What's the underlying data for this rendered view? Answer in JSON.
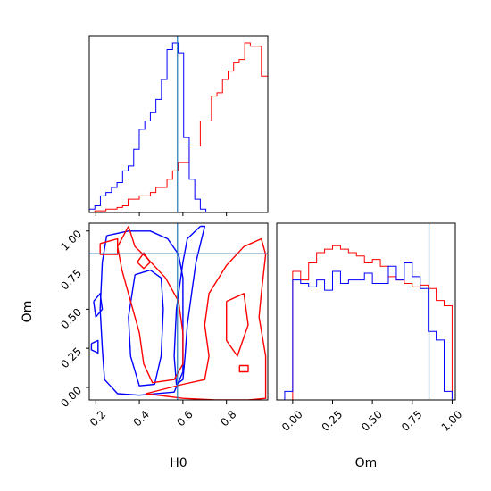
{
  "chart_data": {
    "type": "corner",
    "parameters": [
      "H0",
      "Om"
    ],
    "colors": {
      "series_a": "#ff0000",
      "series_b": "#0000ff",
      "truth": "#1f77b4"
    },
    "truth": {
      "H0": 0.575,
      "Om": 0.855
    },
    "panels": [
      {
        "id": "hist-H0",
        "type": "histogram",
        "xlim": [
          0.17,
          0.99
        ],
        "xticks": [
          0.2,
          0.4,
          0.6,
          0.8
        ],
        "bin_edges": [
          0.17,
          0.1955,
          0.221,
          0.2465,
          0.272,
          0.2975,
          0.323,
          0.3485,
          0.374,
          0.3995,
          0.425,
          0.4505,
          0.476,
          0.5015,
          0.527,
          0.5525,
          0.578,
          0.6035,
          0.629,
          0.6545,
          0.68,
          0.7055,
          0.731,
          0.7565,
          0.782,
          0.8075,
          0.833,
          0.8585,
          0.884,
          0.9095,
          0.935,
          0.9605,
          0.99
        ],
        "series": [
          {
            "color": "#ff0000",
            "counts": [
              0,
              1,
              1,
              2,
              2,
              3,
              4,
              8,
              8,
              10,
              10,
              12,
              15,
              15,
              20,
              25,
              30,
              30,
              40,
              40,
              55,
              55,
              70,
              72,
              80,
              85,
              90,
              92,
              102,
              100,
              100,
              82
            ]
          },
          {
            "color": "#0000ff",
            "counts": [
              2,
              4,
              10,
              12,
              15,
              18,
              25,
              28,
              38,
              50,
              55,
              60,
              68,
              80,
              98,
              102,
              96,
              45,
              20,
              8,
              2,
              0,
              0,
              0,
              0,
              0,
              0,
              0,
              0,
              0,
              0,
              0
            ]
          }
        ]
      },
      {
        "id": "contour-H0-Om",
        "type": "contour",
        "xlabel": "H0",
        "ylabel": "Om",
        "xlim": [
          0.17,
          0.99
        ],
        "ylim": [
          -0.08,
          1.05
        ],
        "xticks": [
          0.2,
          0.4,
          0.6,
          0.8
        ],
        "yticks": [
          0.0,
          0.25,
          0.5,
          0.75,
          1.0
        ],
        "xtick_labels": [
          "0.2",
          "0.4",
          "0.6",
          "0.8"
        ],
        "ytick_labels": [
          "0.00",
          "0.25",
          "0.50",
          "0.75",
          "1.00"
        ],
        "contours": [
          {
            "color": "#0000ff",
            "points": [
              [
                0.25,
                0.97
              ],
              [
                0.35,
                1.0
              ],
              [
                0.45,
                1.0
              ],
              [
                0.53,
                0.95
              ],
              [
                0.58,
                0.85
              ],
              [
                0.6,
                0.7
              ],
              [
                0.6,
                0.5
              ],
              [
                0.6,
                0.3
              ],
              [
                0.6,
                0.1
              ],
              [
                0.56,
                -0.03
              ],
              [
                0.4,
                -0.05
              ],
              [
                0.3,
                -0.04
              ],
              [
                0.24,
                0.05
              ],
              [
                0.23,
                0.25
              ],
              [
                0.22,
                0.5
              ],
              [
                0.23,
                0.8
              ],
              [
                0.25,
                0.97
              ]
            ]
          },
          {
            "color": "#0000ff",
            "points": [
              [
                0.38,
                0.72
              ],
              [
                0.45,
                0.75
              ],
              [
                0.5,
                0.7
              ],
              [
                0.51,
                0.5
              ],
              [
                0.5,
                0.2
              ],
              [
                0.47,
                0.02
              ],
              [
                0.4,
                0.01
              ],
              [
                0.36,
                0.2
              ],
              [
                0.35,
                0.45
              ],
              [
                0.38,
                0.72
              ]
            ]
          },
          {
            "color": "#0000ff",
            "points": [
              [
                0.68,
                1.03
              ],
              [
                0.7,
                1.03
              ],
              [
                0.66,
                0.8
              ],
              [
                0.64,
                0.6
              ],
              [
                0.62,
                0.4
              ],
              [
                0.61,
                0.2
              ],
              [
                0.6,
                0.05
              ],
              [
                0.57,
                0.02
              ],
              [
                0.56,
                0.2
              ],
              [
                0.57,
                0.5
              ],
              [
                0.6,
                0.8
              ],
              [
                0.62,
                0.95
              ],
              [
                0.68,
                1.03
              ]
            ]
          },
          {
            "color": "#ff0000",
            "points": [
              [
                0.35,
                1.03
              ],
              [
                0.38,
                0.9
              ],
              [
                0.44,
                0.82
              ],
              [
                0.52,
                0.7
              ],
              [
                0.58,
                0.55
              ],
              [
                0.6,
                0.35
              ],
              [
                0.6,
                0.15
              ],
              [
                0.56,
                0.05
              ],
              [
                0.46,
                0.03
              ],
              [
                0.42,
                0.15
              ],
              [
                0.4,
                0.35
              ],
              [
                0.36,
                0.55
              ],
              [
                0.32,
                0.75
              ],
              [
                0.3,
                0.9
              ],
              [
                0.35,
                1.03
              ]
            ]
          },
          {
            "color": "#ff0000",
            "points": [
              [
                0.43,
                -0.04
              ],
              [
                0.6,
                -0.07
              ],
              [
                0.75,
                -0.08
              ],
              [
                0.9,
                -0.08
              ],
              [
                0.98,
                -0.07
              ],
              [
                0.98,
                0.2
              ],
              [
                0.95,
                0.45
              ],
              [
                0.96,
                0.6
              ],
              [
                0.98,
                0.85
              ],
              [
                0.96,
                0.95
              ],
              [
                0.88,
                0.9
              ],
              [
                0.8,
                0.78
              ],
              [
                0.72,
                0.6
              ],
              [
                0.7,
                0.4
              ],
              [
                0.72,
                0.2
              ],
              [
                0.7,
                0.05
              ],
              [
                0.6,
                0.02
              ],
              [
                0.43,
                -0.04
              ]
            ]
          },
          {
            "color": "#ff0000",
            "points": [
              [
                0.8,
                0.55
              ],
              [
                0.88,
                0.6
              ],
              [
                0.9,
                0.4
              ],
              [
                0.85,
                0.2
              ],
              [
                0.8,
                0.3
              ],
              [
                0.8,
                0.55
              ]
            ]
          },
          {
            "color": "#ff0000",
            "points": [
              [
                0.22,
                0.92
              ],
              [
                0.3,
                0.95
              ],
              [
                0.3,
                0.85
              ],
              [
                0.22,
                0.85
              ],
              [
                0.22,
                0.92
              ]
            ]
          },
          {
            "color": "#ff0000",
            "points": [
              [
                0.86,
                0.14
              ],
              [
                0.9,
                0.14
              ],
              [
                0.9,
                0.1
              ],
              [
                0.86,
                0.1
              ],
              [
                0.86,
                0.14
              ]
            ]
          },
          {
            "color": "#ff0000",
            "points": [
              [
                0.39,
                0.8
              ],
              [
                0.42,
                0.86
              ],
              [
                0.45,
                0.8
              ],
              [
                0.42,
                0.76
              ],
              [
                0.39,
                0.8
              ]
            ]
          },
          {
            "color": "#0000ff",
            "points": [
              [
                0.19,
                0.55
              ],
              [
                0.22,
                0.6
              ],
              [
                0.23,
                0.5
              ],
              [
                0.2,
                0.45
              ],
              [
                0.19,
                0.55
              ]
            ]
          },
          {
            "color": "#0000ff",
            "points": [
              [
                0.18,
                0.28
              ],
              [
                0.21,
                0.3
              ],
              [
                0.21,
                0.22
              ],
              [
                0.18,
                0.24
              ],
              [
                0.18,
                0.28
              ]
            ]
          }
        ]
      },
      {
        "id": "hist-Om",
        "type": "histogram",
        "xlabel": "Om",
        "xlim": [
          -0.1,
          1.02
        ],
        "xticks": [
          0.0,
          0.25,
          0.5,
          0.75,
          1.0
        ],
        "xtick_labels": [
          "0.00",
          "0.25",
          "0.50",
          "0.75",
          "1.00"
        ],
        "bin_edges": [
          -0.05,
          0.0,
          0.05,
          0.1,
          0.15,
          0.2,
          0.25,
          0.3,
          0.35,
          0.4,
          0.45,
          0.5,
          0.55,
          0.6,
          0.65,
          0.7,
          0.75,
          0.8,
          0.85,
          0.9,
          0.95,
          1.0
        ],
        "series": [
          {
            "color": "#ff0000",
            "counts": [
              0,
              75,
              70,
              80,
              86,
              88,
              90,
              88,
              86,
              84,
              80,
              82,
              78,
              72,
              70,
              68,
              66,
              67,
              65,
              58,
              55
            ]
          },
          {
            "color": "#0000ff",
            "counts": [
              5,
              70,
              68,
              66,
              70,
              64,
              75,
              68,
              70,
              70,
              74,
              68,
              68,
              78,
              70,
              80,
              72,
              65,
              40,
              35,
              5
            ]
          }
        ]
      }
    ]
  }
}
